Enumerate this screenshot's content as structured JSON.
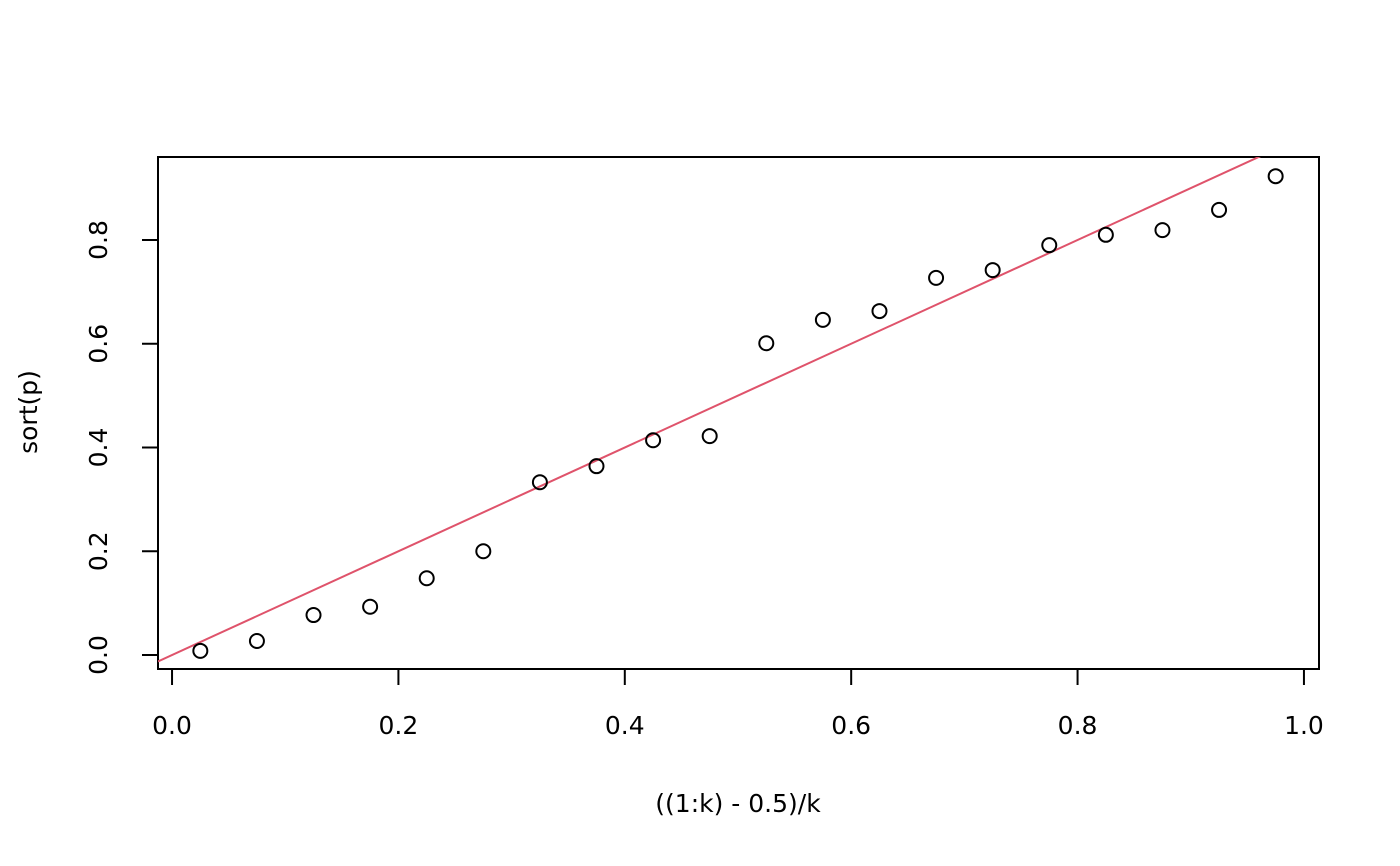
{
  "chart_data": {
    "type": "scatter",
    "xlabel": "((1:k) - 0.5)/k",
    "ylabel": "sort(p)",
    "x": [
      0.025,
      0.075,
      0.125,
      0.175,
      0.225,
      0.275,
      0.325,
      0.375,
      0.425,
      0.475,
      0.525,
      0.575,
      0.625,
      0.675,
      0.725,
      0.775,
      0.825,
      0.875,
      0.925,
      0.975
    ],
    "values": [
      0.008,
      0.027,
      0.077,
      0.093,
      0.148,
      0.2,
      0.333,
      0.364,
      0.414,
      0.422,
      0.601,
      0.646,
      0.663,
      0.727,
      0.742,
      0.79,
      0.81,
      0.819,
      0.858,
      0.923
    ],
    "color": "#000000",
    "line": {
      "intercept": 0,
      "slope": 1,
      "color": "#df536b"
    },
    "xlim": [
      -0.0124,
      1.0133
    ],
    "ylim": [
      -0.027,
      0.96
    ],
    "xticks": [
      {
        "value": 0,
        "label": "0.0"
      },
      0.2,
      0.4,
      0.6,
      0.8,
      {
        "value": 1,
        "label": "1.0"
      }
    ],
    "yticks": [
      {
        "value": 0,
        "label": "0.0"
      },
      0.2,
      0.4,
      0.6,
      0.8
    ]
  }
}
